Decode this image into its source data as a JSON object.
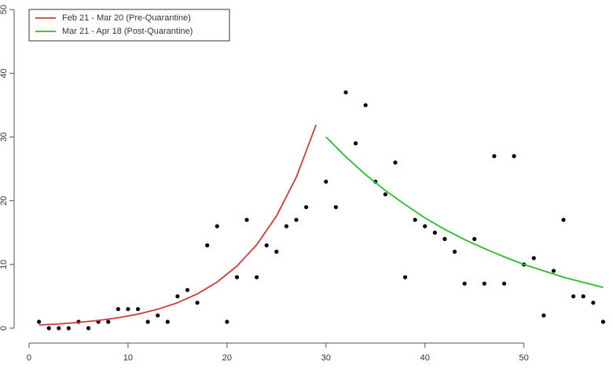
{
  "chart_data": {
    "type": "scatter",
    "xlim": [
      -1,
      59
    ],
    "ylim": [
      -1.5,
      51.5
    ],
    "xticks": [
      0,
      10,
      20,
      30,
      40,
      50
    ],
    "yticks": [
      0,
      10,
      20,
      30,
      40,
      50
    ],
    "legend": "top-left",
    "points": {
      "color": "#000000",
      "x": [
        1,
        2,
        3,
        4,
        5,
        6,
        7,
        8,
        9,
        10,
        11,
        12,
        13,
        14,
        15,
        16,
        17,
        18,
        19,
        20,
        21,
        22,
        23,
        24,
        25,
        26,
        27,
        28,
        30,
        31,
        32,
        33,
        34,
        35,
        36,
        37,
        38,
        39,
        40,
        41,
        42,
        43,
        44,
        45,
        46,
        47,
        48,
        49,
        50,
        51,
        52,
        53,
        54,
        55,
        56,
        57,
        58
      ],
      "values": [
        1,
        0,
        0,
        0,
        1,
        0,
        1,
        1,
        3,
        3,
        3,
        1,
        2,
        1,
        5,
        6,
        4,
        13,
        16,
        1,
        8,
        17,
        8,
        13,
        12,
        16,
        17,
        19,
        23,
        19,
        37,
        29,
        35,
        23,
        21,
        26,
        8,
        17,
        16,
        15,
        14,
        12,
        7,
        14,
        7,
        27,
        7,
        27,
        10,
        11,
        2,
        9,
        17,
        5,
        5,
        4,
        1
      ]
    },
    "series": [
      {
        "name": "Feb 21 - Mar 20 (Pre-Quarantine)",
        "color": "#cc3b3b",
        "x": [
          1,
          3,
          5,
          7,
          9,
          11,
          13,
          15,
          17,
          19,
          21,
          23,
          25,
          27,
          29
        ],
        "values": [
          0.5,
          0.67,
          0.91,
          1.22,
          1.64,
          2.21,
          2.97,
          4.0,
          5.38,
          7.24,
          9.74,
          13.1,
          17.6,
          23.7,
          31.9
        ]
      },
      {
        "name": "Mar 21 - Apr 18 (Post-Quarantine)",
        "color": "#2bbb2b",
        "x": [
          30,
          32,
          34,
          36,
          38,
          40,
          42,
          44,
          46,
          48,
          50,
          52,
          54,
          56,
          58
        ],
        "values": [
          30,
          26.9,
          24.1,
          21.6,
          19.4,
          17.3,
          15.5,
          13.9,
          12.5,
          11.2,
          10.0,
          9.0,
          8.0,
          7.2,
          6.4
        ]
      }
    ]
  }
}
